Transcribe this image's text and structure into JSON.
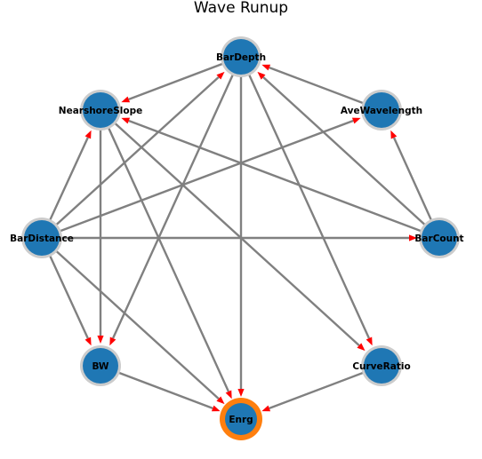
{
  "title": "Wave Runup",
  "colors": {
    "node_fill": "#1f77b4",
    "node_ring": "#cccccc",
    "target_ring": "#ff7f0e",
    "edge": "#808080",
    "arrowhead": "#ff0000"
  },
  "nodes": [
    {
      "id": "BarDepth",
      "label": "BarDepth",
      "target": false
    },
    {
      "id": "AveWavelength",
      "label": "AveWavelength",
      "target": false
    },
    {
      "id": "BarCount",
      "label": "BarCount",
      "target": false
    },
    {
      "id": "CurveRatio",
      "label": "CurveRatio",
      "target": false
    },
    {
      "id": "Enrg",
      "label": "Enrg",
      "target": true
    },
    {
      "id": "BW",
      "label": "BW",
      "target": false
    },
    {
      "id": "BarDistance",
      "label": "BarDistance",
      "target": false
    },
    {
      "id": "NearshoreSlope",
      "label": "NearshoreSlope",
      "target": false
    }
  ],
  "edges": [
    {
      "from": "BarDepth",
      "to": "NearshoreSlope"
    },
    {
      "from": "BarDepth",
      "to": "BW"
    },
    {
      "from": "BarDepth",
      "to": "Enrg"
    },
    {
      "from": "BarDepth",
      "to": "CurveRatio"
    },
    {
      "from": "AveWavelength",
      "to": "BarDepth"
    },
    {
      "from": "BarCount",
      "to": "BarDepth"
    },
    {
      "from": "BarCount",
      "to": "AveWavelength"
    },
    {
      "from": "BarCount",
      "to": "NearshoreSlope"
    },
    {
      "from": "NearshoreSlope",
      "to": "BW"
    },
    {
      "from": "NearshoreSlope",
      "to": "Enrg"
    },
    {
      "from": "NearshoreSlope",
      "to": "CurveRatio"
    },
    {
      "from": "BarDistance",
      "to": "NearshoreSlope"
    },
    {
      "from": "BarDistance",
      "to": "BarDepth"
    },
    {
      "from": "BarDistance",
      "to": "AveWavelength"
    },
    {
      "from": "BarDistance",
      "to": "BarCount"
    },
    {
      "from": "BarDistance",
      "to": "BW"
    },
    {
      "from": "BarDistance",
      "to": "Enrg"
    },
    {
      "from": "BW",
      "to": "Enrg"
    },
    {
      "from": "CurveRatio",
      "to": "Enrg"
    }
  ]
}
